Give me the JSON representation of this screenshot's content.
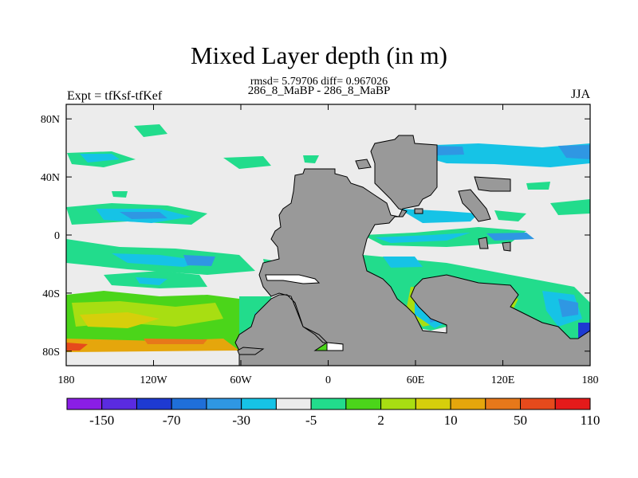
{
  "chart_data": {
    "type": "heatmap",
    "title": "Mixed Layer depth (in m)",
    "stats_line": "rmsd= 5.79706 diff= 0.967026",
    "subtitle": "286_8_MaBP - 286_8_MaBP",
    "left_label": "Expt = tfKsf-tfKef",
    "right_label": "JJA",
    "x_ticks": [
      "180",
      "120W",
      "60W",
      "0",
      "60E",
      "120E",
      "180"
    ],
    "x_tick_values": [
      -180,
      -120,
      -60,
      0,
      60,
      120,
      180
    ],
    "y_ticks": [
      "80N",
      "40N",
      "0",
      "40S",
      "80S"
    ],
    "y_tick_values": [
      80,
      40,
      0,
      -40,
      -80
    ],
    "xlim": [
      -180,
      180
    ],
    "ylim": [
      -90,
      90
    ],
    "colorbar": {
      "labels": [
        "-150",
        "-70",
        "-30",
        "-5",
        "2",
        "10",
        "50",
        "110"
      ],
      "colors": [
        "#8a1ee6",
        "#5a2be0",
        "#1e3ad2",
        "#1f6fd9",
        "#2f97e3",
        "#16c3e6",
        "#ececec",
        "#22dc8c",
        "#4bd51a",
        "#a8de12",
        "#d6cf0b",
        "#e5a60c",
        "#e7781a",
        "#e64a1c",
        "#e41a1a"
      ]
    },
    "colors": {
      "land": "#999999",
      "neutral": "#ececec"
    }
  }
}
